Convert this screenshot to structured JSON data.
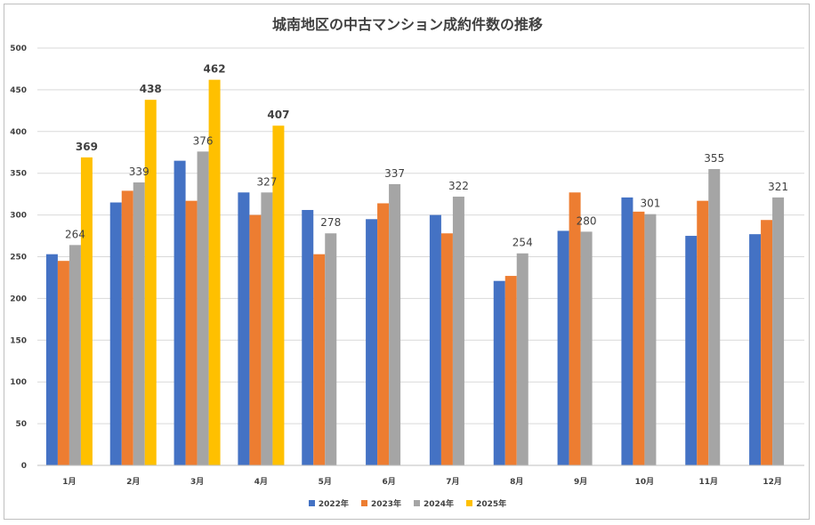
{
  "chart_data": {
    "type": "bar",
    "title": "城南地区の中古マンション成約件数の推移",
    "categories": [
      "1月",
      "2月",
      "3月",
      "4月",
      "5月",
      "6月",
      "7月",
      "8月",
      "9月",
      "10月",
      "11月",
      "12月"
    ],
    "ylim": [
      0,
      500
    ],
    "yticks": [
      0,
      50,
      100,
      150,
      200,
      250,
      300,
      350,
      400,
      450,
      500
    ],
    "grid": true,
    "legend_position": "bottom",
    "series": [
      {
        "name": "2022年",
        "color": "#4472c4",
        "values": [
          253,
          315,
          365,
          327,
          306,
          295,
          300,
          221,
          281,
          321,
          275,
          277
        ]
      },
      {
        "name": "2023年",
        "color": "#ed7d31",
        "values": [
          245,
          329,
          317,
          300,
          253,
          314,
          278,
          227,
          327,
          304,
          317,
          294
        ]
      },
      {
        "name": "2024年",
        "color": "#a5a5a5",
        "values": [
          264,
          339,
          376,
          327,
          278,
          337,
          322,
          254,
          280,
          301,
          355,
          321
        ]
      },
      {
        "name": "2025年",
        "color": "#ffc000",
        "values": [
          369,
          438,
          462,
          407,
          null,
          null,
          null,
          null,
          null,
          null,
          null,
          null
        ]
      }
    ],
    "data_labels": {
      "2024年": [
        "264",
        "339",
        "376",
        "327",
        "278",
        "337",
        "322",
        "254",
        "280",
        "301",
        "355",
        "321"
      ],
      "2025年": [
        "369",
        "438",
        "462",
        "407",
        "",
        "",
        "",
        "",
        "",
        "",
        "",
        ""
      ]
    }
  }
}
